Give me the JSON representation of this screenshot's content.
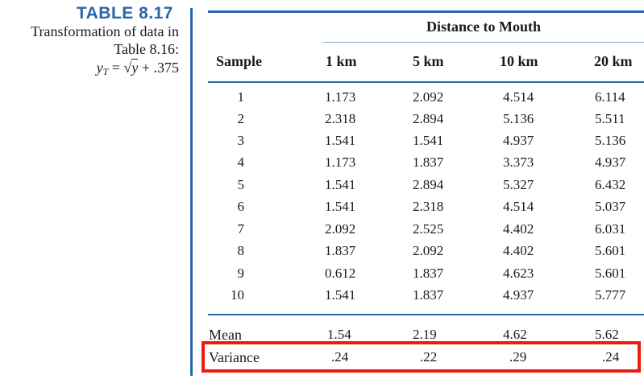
{
  "caption": {
    "table_label": "TABLE 8.17",
    "line1": "Transformation of data in",
    "line2": "Table 8.16:",
    "formula_y": "y",
    "formula_sub": "T",
    "formula_eq": " = ",
    "formula_radical": "√",
    "formula_radicand": "y",
    "formula_tail": " + .375"
  },
  "header": {
    "group_title": "Distance to Mouth",
    "sample": "Sample",
    "columns": [
      "1 km",
      "5 km",
      "10 km",
      "20 km"
    ]
  },
  "rows": [
    {
      "sample": "1",
      "values": [
        "1.173",
        "2.092",
        "4.514",
        "6.114"
      ]
    },
    {
      "sample": "2",
      "values": [
        "2.318",
        "2.894",
        "5.136",
        "5.511"
      ]
    },
    {
      "sample": "3",
      "values": [
        "1.541",
        "1.541",
        "4.937",
        "5.136"
      ]
    },
    {
      "sample": "4",
      "values": [
        "1.173",
        "1.837",
        "3.373",
        "4.937"
      ]
    },
    {
      "sample": "5",
      "values": [
        "1.541",
        "2.894",
        "5.327",
        "6.432"
      ]
    },
    {
      "sample": "6",
      "values": [
        "1.541",
        "2.318",
        "4.514",
        "5.037"
      ]
    },
    {
      "sample": "7",
      "values": [
        "2.092",
        "2.525",
        "4.402",
        "6.031"
      ]
    },
    {
      "sample": "8",
      "values": [
        "1.837",
        "2.092",
        "4.402",
        "5.601"
      ]
    },
    {
      "sample": "9",
      "values": [
        "0.612",
        "1.837",
        "4.623",
        "5.601"
      ]
    },
    {
      "sample": "10",
      "values": [
        "1.541",
        "1.837",
        "4.937",
        "5.777"
      ]
    }
  ],
  "stats": {
    "mean": {
      "label": "Mean",
      "values": [
        "1.54",
        "2.19",
        "4.62",
        "5.62"
      ]
    },
    "variance": {
      "label": "Variance",
      "values": [
        ".24",
        ".22",
        ".29",
        ".24"
      ]
    }
  },
  "colors": {
    "accent_blue": "#2a66ab",
    "highlight_red": "#ee1c0e"
  }
}
